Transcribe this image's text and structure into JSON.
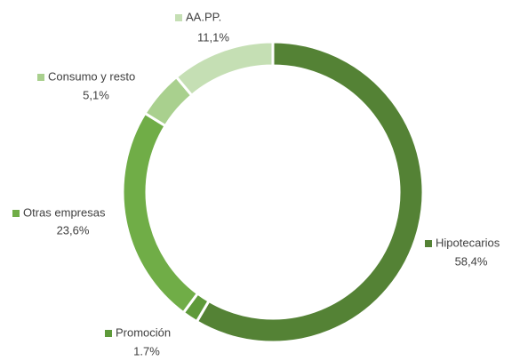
{
  "chart_data": {
    "type": "donut",
    "categories": [
      "Hipotecarios",
      "Promoción",
      "Otras empresas",
      "Consumo y resto",
      "AA.PP."
    ],
    "values": [
      58.4,
      1.7,
      23.6,
      5.1,
      11.1
    ],
    "value_labels": [
      "58,4%",
      "1.7%",
      "23,6%",
      "5,1%",
      "11,1%"
    ],
    "colors": [
      "#548235",
      "#5e9a3a",
      "#70ad47",
      "#a9d08e",
      "#c5dfb4"
    ]
  }
}
